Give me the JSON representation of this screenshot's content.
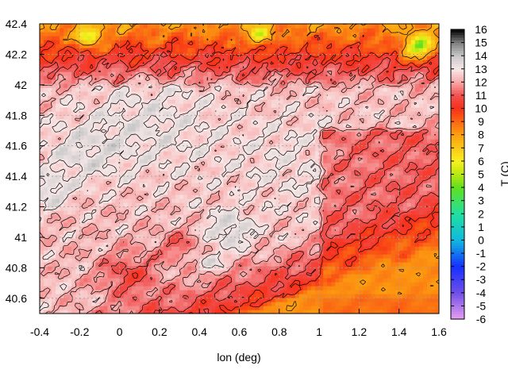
{
  "chart_data": {
    "type": "heatmap",
    "xlabel": "lon (deg)",
    "ylabel": "",
    "xlim": [
      -0.4,
      1.6
    ],
    "ylim": [
      40.5,
      42.4
    ],
    "x_ticks": [
      "-0.4",
      "-0.2",
      "0",
      "0.2",
      "0.4",
      "0.6",
      "0.8",
      "1",
      "1.2",
      "1.4",
      "1.6"
    ],
    "y_ticks": [
      "40.6",
      "40.8",
      "41",
      "41.2",
      "41.4",
      "41.6",
      "41.8",
      "42",
      "42.2",
      "42.4"
    ],
    "grid": true,
    "colorbar": {
      "label": "T (C)",
      "range": [
        -6,
        16
      ],
      "ticks": [
        "16",
        "15",
        "14",
        "13",
        "12",
        "11",
        "10",
        "9",
        "8",
        "7",
        "6",
        "5",
        "4",
        "3",
        "2",
        "1",
        "0",
        "-1",
        "-2",
        "-3",
        "-4",
        "-5",
        "-6"
      ],
      "stops": [
        {
          "v": -6,
          "c": "#e8a0f0"
        },
        {
          "v": -4,
          "c": "#7050e8"
        },
        {
          "v": -2,
          "c": "#1530ff"
        },
        {
          "v": 0,
          "c": "#10b8e0"
        },
        {
          "v": 2,
          "c": "#20e0a0"
        },
        {
          "v": 4,
          "c": "#60e020"
        },
        {
          "v": 5,
          "c": "#b8e810"
        },
        {
          "v": 6,
          "c": "#f8f020"
        },
        {
          "v": 8,
          "c": "#fca010"
        },
        {
          "v": 10,
          "c": "#f83018"
        },
        {
          "v": 11,
          "c": "#f05050"
        },
        {
          "v": 12,
          "c": "#f8a8a8"
        },
        {
          "v": 13,
          "c": "#f8e8e8"
        },
        {
          "v": 14,
          "c": "#c8c8c8"
        },
        {
          "v": 15,
          "c": "#808080"
        },
        {
          "v": 16,
          "c": "#000000"
        }
      ]
    }
  }
}
